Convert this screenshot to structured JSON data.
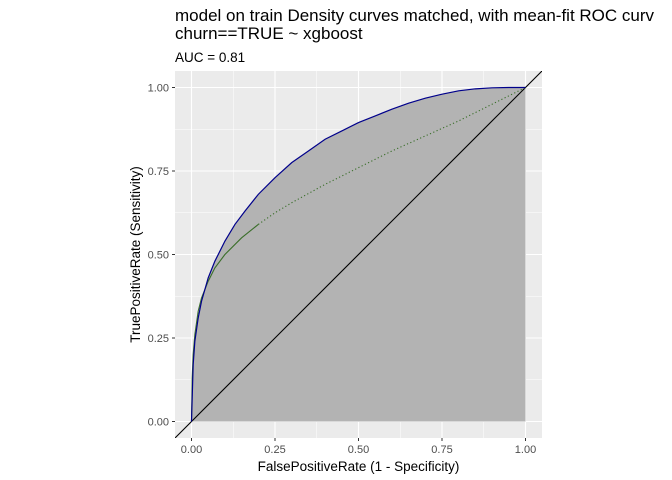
{
  "chart_data": {
    "type": "line",
    "title": "model on train Density curves matched, with mean-fit ROC curv",
    "title_line2": "churn==TRUE ~ xgboost",
    "subtitle": "AUC = 0.81",
    "xlabel": "FalsePositiveRate (1 - Specificity)",
    "ylabel": "TruePositiveRate (Sensitivity)",
    "xlim": [
      0,
      1
    ],
    "ylim": [
      0,
      1
    ],
    "x_ticks": [
      "0.00",
      "0.25",
      "0.50",
      "0.75",
      "1.00"
    ],
    "y_ticks": [
      "0.00",
      "0.25",
      "0.50",
      "0.75",
      "1.00"
    ],
    "grid": true,
    "colors": {
      "panel": "#ebebeb",
      "grid": "#ffffff",
      "fill": "#b3b3b3",
      "empirical": "#00008b",
      "fit": "#3a6e2a",
      "diagonal": "#000000"
    },
    "series": [
      {
        "x": [
          0,
          0.005,
          0.01,
          0.02,
          0.03,
          0.05,
          0.07,
          0.1,
          0.13,
          0.16,
          0.2,
          0.25,
          0.3,
          0.35,
          0.4,
          0.45,
          0.5,
          0.55,
          0.6,
          0.65,
          0.7,
          0.75,
          0.8,
          0.85,
          0.9,
          0.95,
          1
        ],
        "y": [
          0,
          0.17,
          0.24,
          0.31,
          0.36,
          0.43,
          0.48,
          0.54,
          0.59,
          0.63,
          0.68,
          0.73,
          0.775,
          0.81,
          0.845,
          0.87,
          0.895,
          0.915,
          0.935,
          0.953,
          0.968,
          0.98,
          0.99,
          0.996,
          0.999,
          1,
          1
        ]
      },
      {
        "x": [
          0,
          0.002,
          0.005,
          0.01,
          0.02,
          0.03,
          0.05,
          0.07,
          0.1,
          0.15,
          0.2,
          0.25,
          0.3,
          0.4,
          0.5,
          0.6,
          0.7,
          0.8,
          0.9,
          1
        ],
        "y": [
          0,
          0.13,
          0.2,
          0.26,
          0.33,
          0.37,
          0.42,
          0.46,
          0.5,
          0.55,
          0.59,
          0.625,
          0.655,
          0.71,
          0.76,
          0.81,
          0.855,
          0.9,
          0.95,
          1
        ]
      }
    ]
  }
}
